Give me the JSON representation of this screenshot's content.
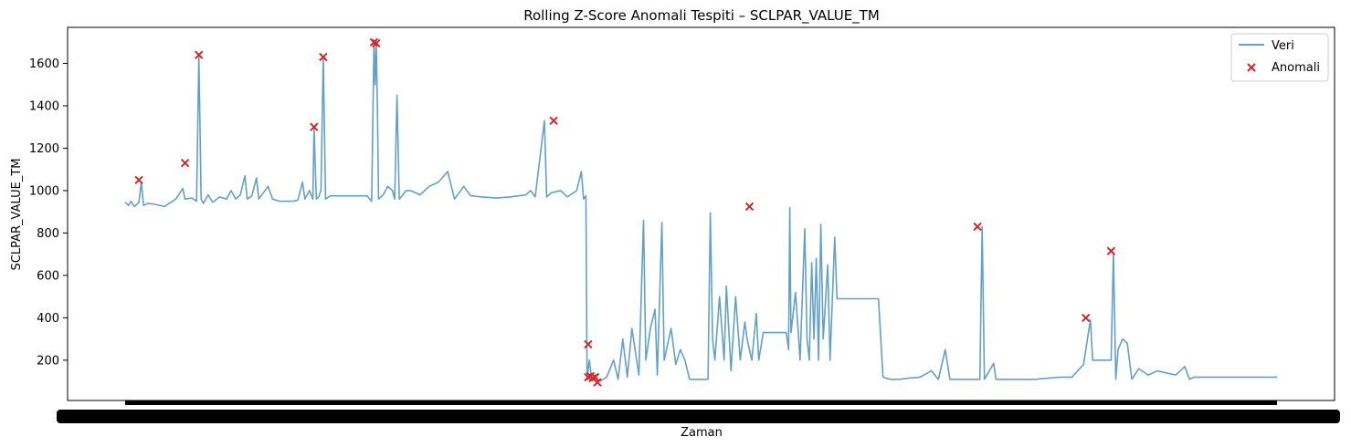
{
  "chart_data": {
    "type": "line",
    "title": "Rolling Z-Score Anomali Tespiti – SCLPAR_VALUE_TM",
    "xlabel": "Zaman",
    "ylabel": "SCLPAR_VALUE_TM",
    "ylim": [
      10,
      1770
    ],
    "yticks": [
      200,
      400,
      600,
      800,
      1000,
      1200,
      1400,
      1600
    ],
    "x_index_range": [
      0,
      1000
    ],
    "grid": false,
    "legend_position": "top-right",
    "colors": {
      "line": "#1f77b4",
      "anomaly": "#d62728"
    },
    "series": [
      {
        "name": "Veri",
        "kind": "line",
        "points": [
          [
            0,
            945
          ],
          [
            3,
            930
          ],
          [
            5,
            950
          ],
          [
            8,
            925
          ],
          [
            12,
            945
          ],
          [
            14,
            1040
          ],
          [
            16,
            930
          ],
          [
            20,
            940
          ],
          [
            26,
            935
          ],
          [
            34,
            925
          ],
          [
            44,
            960
          ],
          [
            50,
            1010
          ],
          [
            52,
            960
          ],
          [
            58,
            965
          ],
          [
            62,
            950
          ],
          [
            64,
            1640
          ],
          [
            66,
            960
          ],
          [
            68,
            940
          ],
          [
            72,
            980
          ],
          [
            76,
            945
          ],
          [
            82,
            970
          ],
          [
            88,
            960
          ],
          [
            92,
            1000
          ],
          [
            96,
            960
          ],
          [
            100,
            980
          ],
          [
            104,
            1070
          ],
          [
            106,
            960
          ],
          [
            110,
            975
          ],
          [
            114,
            1060
          ],
          [
            116,
            960
          ],
          [
            120,
            990
          ],
          [
            124,
            1020
          ],
          [
            128,
            960
          ],
          [
            134,
            950
          ],
          [
            140,
            950
          ],
          [
            146,
            950
          ],
          [
            150,
            955
          ],
          [
            154,
            1040
          ],
          [
            156,
            960
          ],
          [
            160,
            1000
          ],
          [
            163,
            960
          ],
          [
            164,
            1300
          ],
          [
            166,
            960
          ],
          [
            168,
            970
          ],
          [
            170,
            1000
          ],
          [
            172,
            1630
          ],
          [
            174,
            960
          ],
          [
            178,
            975
          ],
          [
            188,
            975
          ],
          [
            200,
            975
          ],
          [
            206,
            975
          ],
          [
            210,
            975
          ],
          [
            214,
            950
          ],
          [
            216,
            1700
          ],
          [
            217,
            1500
          ],
          [
            218,
            1700
          ],
          [
            219,
            1380
          ],
          [
            220,
            960
          ],
          [
            224,
            980
          ],
          [
            228,
            1020
          ],
          [
            232,
            1000
          ],
          [
            234,
            960
          ],
          [
            236,
            1450
          ],
          [
            238,
            960
          ],
          [
            244,
            1000
          ],
          [
            248,
            1000
          ],
          [
            256,
            980
          ],
          [
            264,
            1020
          ],
          [
            272,
            1040
          ],
          [
            280,
            1090
          ],
          [
            286,
            960
          ],
          [
            294,
            1020
          ],
          [
            300,
            975
          ],
          [
            310,
            970
          ],
          [
            322,
            965
          ],
          [
            334,
            970
          ],
          [
            348,
            980
          ],
          [
            352,
            1000
          ],
          [
            356,
            970
          ],
          [
            364,
            1330
          ],
          [
            366,
            970
          ],
          [
            370,
            990
          ],
          [
            378,
            1000
          ],
          [
            384,
            970
          ],
          [
            392,
            1000
          ],
          [
            396,
            1090
          ],
          [
            398,
            960
          ],
          [
            400,
            975
          ],
          [
            401,
            120
          ],
          [
            403,
            200
          ],
          [
            405,
            110
          ],
          [
            408,
            120
          ],
          [
            412,
            100
          ],
          [
            418,
            120
          ],
          [
            424,
            200
          ],
          [
            428,
            110
          ],
          [
            432,
            300
          ],
          [
            436,
            120
          ],
          [
            440,
            350
          ],
          [
            446,
            130
          ],
          [
            450,
            860
          ],
          [
            452,
            200
          ],
          [
            456,
            350
          ],
          [
            460,
            440
          ],
          [
            462,
            130
          ],
          [
            466,
            850
          ],
          [
            468,
            200
          ],
          [
            474,
            350
          ],
          [
            478,
            180
          ],
          [
            482,
            250
          ],
          [
            486,
            200
          ],
          [
            490,
            110
          ],
          [
            498,
            110
          ],
          [
            506,
            110
          ],
          [
            508,
            895
          ],
          [
            510,
            300
          ],
          [
            512,
            200
          ],
          [
            516,
            500
          ],
          [
            520,
            200
          ],
          [
            522,
            550
          ],
          [
            526,
            150
          ],
          [
            530,
            500
          ],
          [
            534,
            200
          ],
          [
            538,
            380
          ],
          [
            540,
            300
          ],
          [
            544,
            200
          ],
          [
            548,
            420
          ],
          [
            550,
            200
          ],
          [
            554,
            330
          ],
          [
            566,
            330
          ],
          [
            574,
            330
          ],
          [
            576,
            250
          ],
          [
            577,
            920
          ],
          [
            578,
            330
          ],
          [
            582,
            520
          ],
          [
            586,
            200
          ],
          [
            590,
            820
          ],
          [
            592,
            300
          ],
          [
            594,
            200
          ],
          [
            596,
            660
          ],
          [
            598,
            300
          ],
          [
            600,
            680
          ],
          [
            602,
            200
          ],
          [
            604,
            840
          ],
          [
            606,
            300
          ],
          [
            610,
            650
          ],
          [
            612,
            200
          ],
          [
            616,
            780
          ],
          [
            618,
            490
          ],
          [
            650,
            490
          ],
          [
            654,
            490
          ],
          [
            658,
            120
          ],
          [
            664,
            110
          ],
          [
            672,
            110
          ],
          [
            680,
            115
          ],
          [
            690,
            120
          ],
          [
            700,
            150
          ],
          [
            706,
            110
          ],
          [
            712,
            250
          ],
          [
            716,
            110
          ],
          [
            722,
            110
          ],
          [
            742,
            110
          ],
          [
            744,
            830
          ],
          [
            746,
            110
          ],
          [
            754,
            185
          ],
          [
            756,
            110
          ],
          [
            768,
            110
          ],
          [
            790,
            110
          ],
          [
            812,
            120
          ],
          [
            822,
            120
          ],
          [
            832,
            180
          ],
          [
            838,
            390
          ],
          [
            840,
            200
          ],
          [
            856,
            200
          ],
          [
            858,
            710
          ],
          [
            860,
            110
          ],
          [
            862,
            250
          ],
          [
            866,
            300
          ],
          [
            870,
            280
          ],
          [
            874,
            110
          ],
          [
            880,
            160
          ],
          [
            888,
            130
          ],
          [
            896,
            150
          ],
          [
            904,
            140
          ],
          [
            912,
            130
          ],
          [
            920,
            170
          ],
          [
            924,
            110
          ],
          [
            928,
            120
          ],
          [
            940,
            120
          ],
          [
            960,
            120
          ],
          [
            980,
            120
          ],
          [
            1000,
            120
          ]
        ]
      },
      {
        "name": "Anomali",
        "kind": "scatter",
        "points": [
          [
            12,
            1050
          ],
          [
            52,
            1130
          ],
          [
            64,
            1640
          ],
          [
            164,
            1300
          ],
          [
            172,
            1630
          ],
          [
            216,
            1700
          ],
          [
            218,
            1695
          ],
          [
            372,
            1330
          ],
          [
            402,
            275
          ],
          [
            402,
            120
          ],
          [
            404,
            125
          ],
          [
            406,
            115
          ],
          [
            408,
            120
          ],
          [
            410,
            95
          ],
          [
            542,
            925
          ],
          [
            740,
            830
          ],
          [
            834,
            400
          ],
          [
            856,
            715
          ]
        ]
      }
    ]
  }
}
